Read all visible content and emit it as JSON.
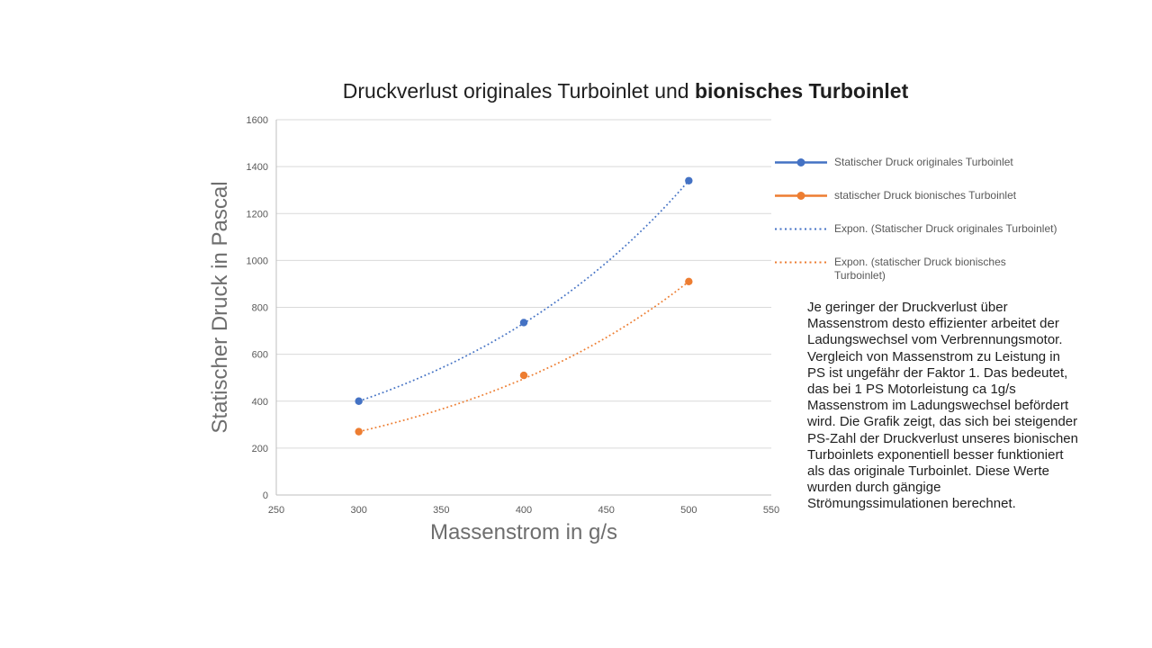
{
  "header": {
    "title_regular": "Druckverlust originales Turboinlet und ",
    "title_bold": "bionisches Turboinlet"
  },
  "chart_data": {
    "type": "scatter",
    "title": "Druckverlust originales Turboinlet und bionisches Turboinlet",
    "xlabel": "Massenstrom in g/s",
    "ylabel": "Statischer Druck in Pascal",
    "xlim": [
      250,
      550
    ],
    "ylim": [
      0,
      1600
    ],
    "x_ticks": [
      250,
      300,
      350,
      400,
      450,
      500,
      550
    ],
    "y_ticks": [
      0,
      200,
      400,
      600,
      800,
      1000,
      1200,
      1400,
      1600
    ],
    "grid": "horizontal",
    "legend_position": "right",
    "x": [
      300,
      400,
      500
    ],
    "series": [
      {
        "name": "Statischer Druck originales Turboinlet",
        "color": "#4472C4",
        "marker": "circle",
        "line": "none",
        "values": [
          400,
          735,
          1340
        ],
        "trendline": "exponential"
      },
      {
        "name": "statischer Druck bionisches Turboinlet",
        "color": "#ED7D31",
        "marker": "circle",
        "line": "none",
        "values": [
          270,
          510,
          910
        ],
        "trendline": "exponential"
      }
    ]
  },
  "legend": {
    "items": [
      {
        "label": "Statischer Druck originales Turboinlet",
        "color": "#4472C4",
        "style": "line-marker"
      },
      {
        "label": "statischer Druck bionisches Turboinlet",
        "color": "#ED7D31",
        "style": "line-marker"
      },
      {
        "label": "Expon. (Statischer Druck originales Turboinlet)",
        "color": "#4472C4",
        "style": "dotted"
      },
      {
        "label": "Expon. (statischer Druck bionisches Turboinlet)",
        "color": "#ED7D31",
        "style": "dotted"
      }
    ]
  },
  "note": {
    "text": "Je geringer der Druckverlust über Massenstrom desto effizienter arbeitet der Ladungswechsel vom Verbrennungsmotor. Vergleich von Massenstrom zu Leistung in PS ist ungefähr der Faktor 1. Das bedeutet, das bei 1 PS Motorleistung ca 1g/s Massenstrom im Ladungswechsel befördert wird. Die Grafik zeigt, das sich bei steigender PS-Zahl der Druckverlust unseres bionischen Turboinlets exponentiell besser funktioniert als das originale Turboinlet. Diese Werte wurden durch gängige Strömungssimulationen berechnet."
  },
  "colors": {
    "series_blue": "#4472C4",
    "series_orange": "#ED7D31",
    "gridline": "#D9D9D9",
    "axis_line": "#BFBFBF",
    "tick_text": "#595959",
    "axis_title_text": "#6E6E6E",
    "legend_text": "#595959",
    "title_text": "#1F1F1F"
  }
}
